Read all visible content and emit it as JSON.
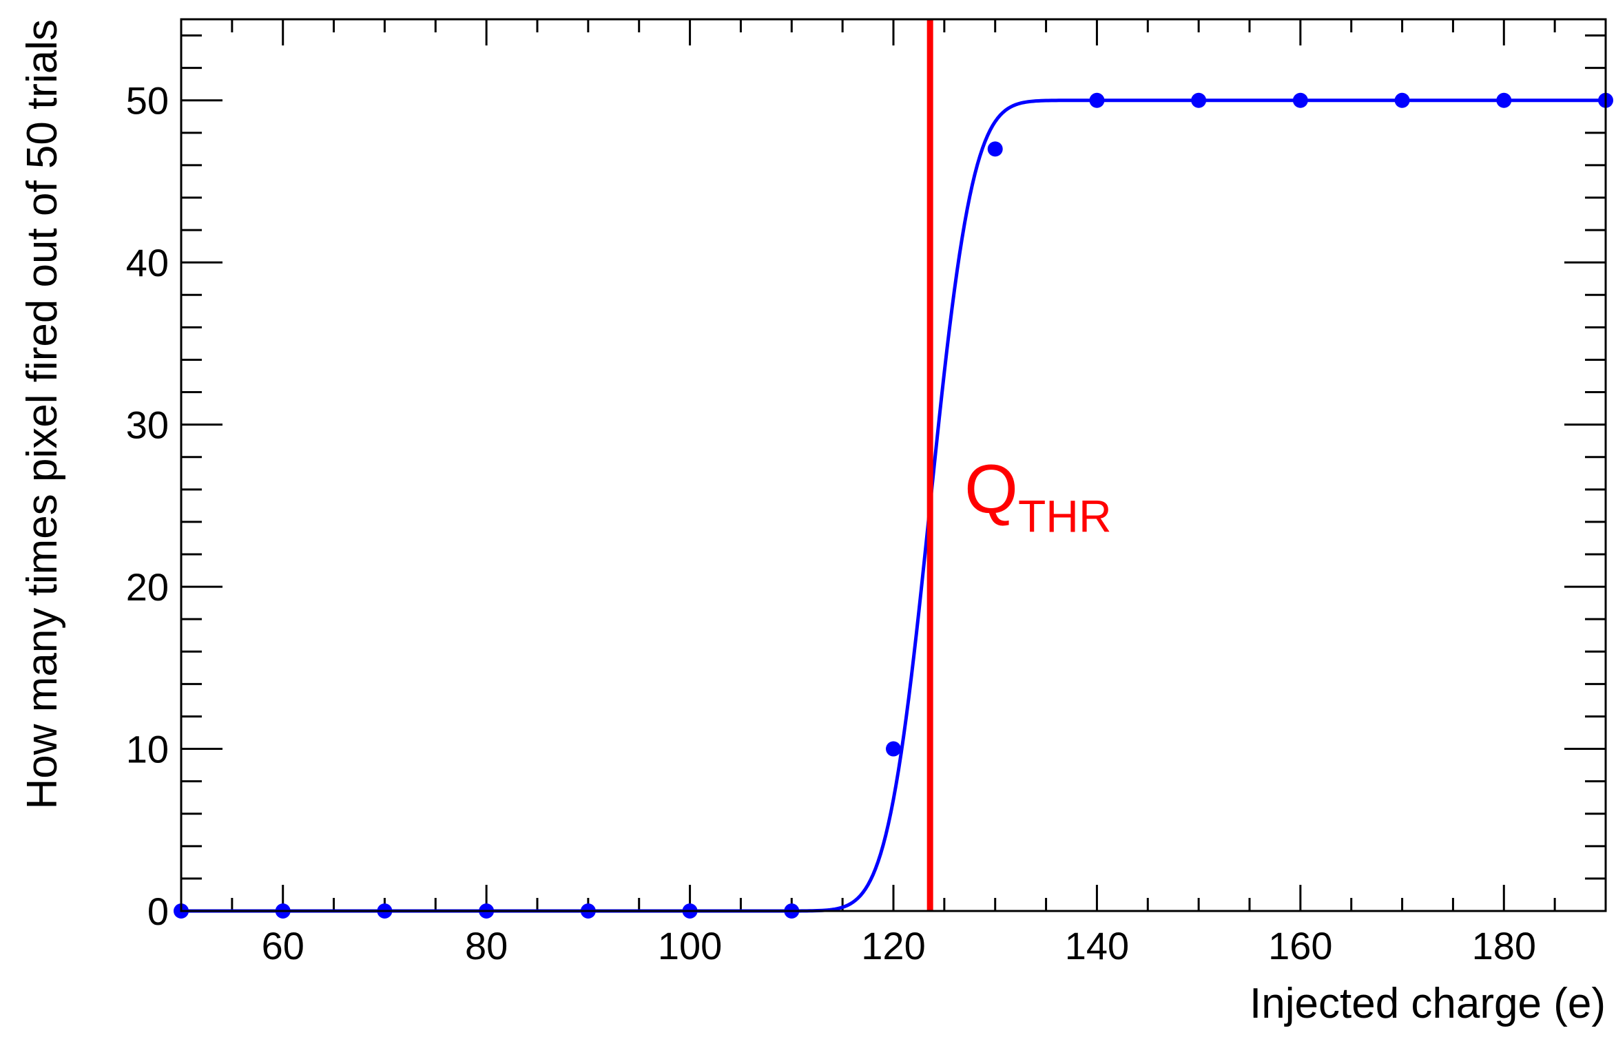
{
  "chart_data": {
    "type": "scatter",
    "xlabel": "Injected charge (e)",
    "ylabel": "How many times pixel fired out of 50 trials",
    "xlim": [
      50,
      190
    ],
    "ylim": [
      0,
      55
    ],
    "x_ticks": [
      60,
      80,
      100,
      120,
      140,
      160,
      180
    ],
    "y_ticks": [
      0,
      10,
      20,
      30,
      40,
      50
    ],
    "grid": false,
    "series": [
      {
        "color": "#0000ff",
        "marker": "circle",
        "points": [
          {
            "x": 50,
            "y": 0
          },
          {
            "x": 60,
            "y": 0
          },
          {
            "x": 70,
            "y": 0
          },
          {
            "x": 80,
            "y": 0
          },
          {
            "x": 90,
            "y": 0
          },
          {
            "x": 100,
            "y": 0
          },
          {
            "x": 110,
            "y": 0
          },
          {
            "x": 120,
            "y": 10
          },
          {
            "x": 130,
            "y": 47
          },
          {
            "x": 140,
            "y": 50
          },
          {
            "x": 150,
            "y": 50
          },
          {
            "x": 160,
            "y": 50
          },
          {
            "x": 170,
            "y": 50
          },
          {
            "x": 180,
            "y": 50
          },
          {
            "x": 190,
            "y": 50
          }
        ]
      }
    ],
    "fit": {
      "type": "error-function",
      "color": "#0000ff",
      "amplitude": 50,
      "mean": 123.6,
      "sigma": 3.3
    },
    "threshold": {
      "x": 123.6,
      "color": "#ff0000",
      "label_main": "Q",
      "label_sub": "THR"
    }
  }
}
